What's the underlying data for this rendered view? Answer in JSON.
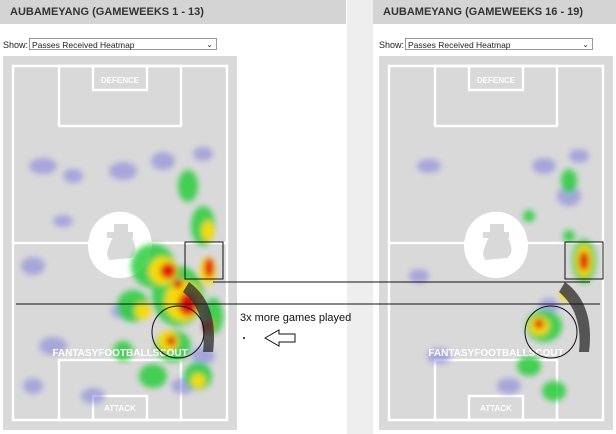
{
  "left_panel": {
    "title": "AUBAMEYANG (GAMEWEEKS 1 - 13)",
    "show_label": "Show:",
    "select_value": "Passes Received Heatmap",
    "pitch": {
      "top_label": "DEFENCE",
      "bottom_label": "ATTACK",
      "watermark": "FANTASYFOOTBALLSCOUT"
    }
  },
  "right_panel": {
    "title": "AUBAMEYANG (GAMEWEEKS 16 - 19)",
    "show_label": "Show:",
    "select_value": "Passes Received Heatmap",
    "pitch": {
      "top_label": "DEFENCE",
      "bottom_label": "ATTACK",
      "watermark": "FANTASYFOOTBALLSCOUT"
    }
  },
  "annotation": {
    "text": "3x more games played"
  },
  "colors": {
    "header_bg": "#d4d4d4",
    "pitch_bg": "#d9d9d9",
    "line": "#ffffff",
    "hot": "#e00000",
    "warm": "#ffcc00",
    "cool": "#22cc33",
    "cold": "#6666dd"
  },
  "icons": [
    "chevron-down-icon",
    "club-crest-icon",
    "arrow-left-icon"
  ]
}
